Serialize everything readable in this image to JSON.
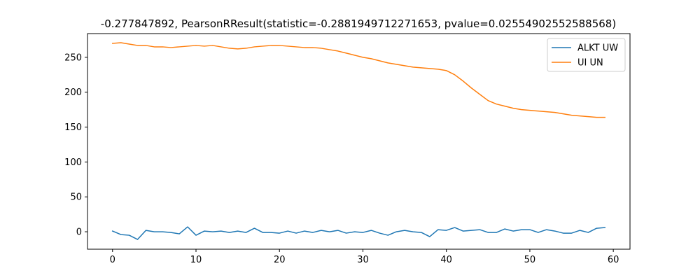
{
  "chart_data": {
    "type": "line",
    "title": "-0.277847892, PearsonRResult(statistic=-0.2881949712271653, pvalue=0.02554902552588568)",
    "xlabel": "",
    "ylabel": "",
    "xlim": [
      -3,
      62
    ],
    "ylim": [
      -25,
      284
    ],
    "xticks": [
      0,
      10,
      20,
      30,
      40,
      50,
      60
    ],
    "yticks": [
      0,
      50,
      100,
      150,
      200,
      250
    ],
    "grid": false,
    "legend_position": "top-right",
    "x": [
      0,
      1,
      2,
      3,
      4,
      5,
      6,
      7,
      8,
      9,
      10,
      11,
      12,
      13,
      14,
      15,
      16,
      17,
      18,
      19,
      20,
      21,
      22,
      23,
      24,
      25,
      26,
      27,
      28,
      29,
      30,
      31,
      32,
      33,
      34,
      35,
      36,
      37,
      38,
      39,
      40,
      41,
      42,
      43,
      44,
      45,
      46,
      47,
      48,
      49,
      50,
      51,
      52,
      53,
      54,
      55,
      56,
      57,
      58,
      59
    ],
    "series": [
      {
        "name": "ALKT UW",
        "color": "#1f77b4",
        "values": [
          1,
          -4,
          -5,
          -11,
          2,
          0,
          0,
          -1,
          -3,
          7,
          -5,
          1,
          0,
          1,
          -1,
          1,
          -1,
          5,
          -1,
          -1,
          -2,
          1,
          -2,
          1,
          -1,
          2,
          0,
          2,
          -2,
          0,
          -1,
          2,
          -2,
          -5,
          0,
          2,
          0,
          -1,
          -7,
          3,
          2,
          6,
          1,
          2,
          3,
          -1,
          -1,
          4,
          1,
          3,
          3,
          -1,
          3,
          1,
          -2,
          -2,
          2,
          -1,
          5,
          6
        ]
      },
      {
        "name": "UI UN",
        "color": "#ff7f0e",
        "values": [
          270,
          271,
          269,
          267,
          267,
          265,
          265,
          264,
          265,
          266,
          267,
          266,
          267,
          265,
          263,
          262,
          263,
          265,
          266,
          267,
          267,
          266,
          265,
          264,
          264,
          263,
          261,
          259,
          256,
          253,
          250,
          248,
          245,
          242,
          240,
          238,
          236,
          235,
          234,
          233,
          231,
          225,
          216,
          206,
          197,
          188,
          183,
          180,
          177,
          175,
          174,
          173,
          172,
          171,
          169,
          167,
          166,
          165,
          164,
          164
        ]
      }
    ]
  }
}
